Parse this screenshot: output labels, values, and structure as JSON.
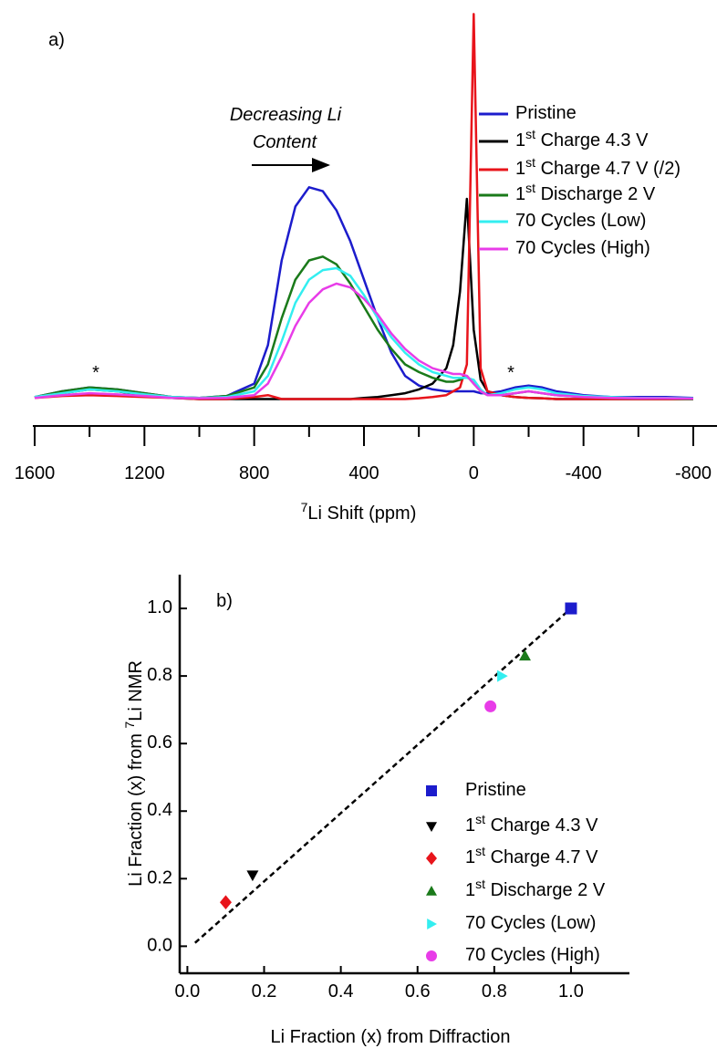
{
  "chart_data": [
    {
      "type": "line",
      "xlabel": "7Li Shift (ppm)",
      "xlim": [
        1600,
        -800
      ],
      "xticks": [
        1600,
        1200,
        800,
        400,
        0,
        -400,
        -800
      ],
      "xminorticks": [
        1400,
        1000,
        600,
        200,
        -200,
        -600
      ],
      "ylim": [
        -7,
        102
      ],
      "legend": "upper right",
      "annotations": [
        "a)",
        "Decreasing Li",
        "Content",
        "*",
        "*"
      ],
      "x": [
        1600,
        1500,
        1400,
        1300,
        1200,
        1100,
        1000,
        900,
        800,
        750,
        700,
        650,
        600,
        550,
        500,
        450,
        400,
        350,
        300,
        250,
        200,
        150,
        100,
        75,
        50,
        25,
        0,
        -25,
        -50,
        -100,
        -150,
        -200,
        -250,
        -300,
        -400,
        -500,
        -600,
        -700,
        -800
      ],
      "series": [
        {
          "name": "Pristine",
          "color": "#1c1ccc",
          "values": [
            0.5,
            2,
            3,
            2.5,
            1.5,
            0.5,
            0.3,
            0.8,
            4,
            14,
            36,
            50,
            55,
            54,
            49,
            41,
            31,
            21,
            12,
            6,
            3.5,
            2.5,
            2,
            2,
            2,
            2,
            2,
            1.5,
            1.5,
            2,
            3,
            3.5,
            3,
            2,
            1,
            0.5,
            0.5,
            0.5,
            0.3
          ]
        },
        {
          "name": "1st Charge 4.3 V",
          "color": "#000000",
          "values": [
            0.3,
            1.5,
            2.5,
            2,
            1,
            0.3,
            0,
            0,
            0,
            0,
            0,
            0,
            0,
            0,
            0,
            0,
            0.3,
            0.5,
            1,
            1.5,
            2.5,
            4,
            8,
            14,
            28,
            52,
            18,
            5,
            2,
            1,
            0.5,
            0.3,
            0.2,
            0,
            0,
            0,
            0,
            0,
            0
          ]
        },
        {
          "name": "1st Charge 4.7 V (/2)",
          "color": "#e8141b",
          "values": [
            0.3,
            0.8,
            1,
            0.8,
            0.5,
            0.3,
            0,
            0,
            0.5,
            1,
            0,
            0,
            0,
            0,
            0,
            0,
            0,
            0,
            0,
            0,
            0.2,
            0.5,
            1,
            2,
            3,
            9,
            100,
            8,
            2,
            1,
            0.5,
            0.3,
            0.2,
            0,
            0,
            0,
            0,
            0,
            0
          ]
        },
        {
          "name": "1st Discharge 2 V",
          "color": "#1a7a1a",
          "values": [
            0.5,
            2,
            3,
            2.5,
            1.5,
            0.5,
            0.3,
            0.8,
            3,
            9,
            21,
            31,
            36,
            37,
            35,
            30,
            24,
            18,
            13,
            9,
            7,
            5.5,
            4.5,
            4.5,
            5,
            6,
            4,
            2,
            1,
            1,
            1.5,
            2,
            1.5,
            1,
            0.5,
            0.3,
            0.2,
            0.2,
            0
          ]
        },
        {
          "name": "70 Cycles (Low)",
          "color": "#33eef0",
          "values": [
            0.5,
            1.5,
            2.5,
            2,
            1.2,
            0.5,
            0.3,
            0.5,
            2,
            6,
            15,
            25,
            31,
            33.5,
            34,
            32,
            27,
            21,
            16,
            12,
            9,
            7,
            6,
            5.5,
            5.5,
            5.5,
            5,
            2.5,
            1,
            1.5,
            2.5,
            3,
            2.5,
            1.5,
            0.8,
            0.5,
            0.3,
            0.3,
            0.2
          ]
        },
        {
          "name": "70 Cycles (High)",
          "color": "#e83ce8",
          "values": [
            0.3,
            1,
            1.5,
            1.2,
            0.8,
            0.3,
            0.2,
            0.3,
            1,
            4,
            11,
            19,
            25,
            28.5,
            30,
            29,
            26,
            22,
            17,
            13,
            10,
            8,
            7,
            6.5,
            6.5,
            6,
            4,
            2,
            1,
            1,
            1.5,
            2,
            1.5,
            1,
            0.5,
            0.3,
            0.2,
            0.2,
            0.1
          ]
        }
      ]
    },
    {
      "type": "scatter",
      "xlabel": "Li Fraction (x) from Diffraction",
      "ylabel": "Li Fraction (x) from 7Li NMR",
      "xlim": [
        -0.02,
        1.1
      ],
      "ylim": [
        -0.08,
        1.1
      ],
      "xticks": [
        {
          "value": 0,
          "label": "0.0"
        },
        0.2,
        0.4,
        0.6,
        0.8,
        {
          "value": 1,
          "label": "1.0"
        }
      ],
      "yticks": [
        {
          "value": 0,
          "label": "0.0"
        },
        0.2,
        0.4,
        0.6,
        0.8,
        {
          "value": 1,
          "label": "1.0"
        }
      ],
      "legend": "lower right",
      "annotations": [
        "b)"
      ],
      "series": [
        {
          "name": "Pristine",
          "color": "#1c1ccc",
          "marker": "square",
          "x": [
            1.0
          ],
          "values": [
            1.0
          ]
        },
        {
          "name": "1st Charge 4.3 V",
          "color": "#000000",
          "marker": "triangle-down",
          "x": [
            0.17
          ],
          "values": [
            0.21
          ]
        },
        {
          "name": "1st Charge 4.7 V",
          "color": "#e8141b",
          "marker": "diamond",
          "x": [
            0.1
          ],
          "values": [
            0.13
          ]
        },
        {
          "name": "1st Discharge 2 V",
          "color": "#1a7a1a",
          "marker": "triangle-up",
          "x": [
            0.88
          ],
          "values": [
            0.86
          ]
        },
        {
          "name": "70 Cycles (Low)",
          "color": "#33eef0",
          "marker": "triangle-right",
          "x": [
            0.82
          ],
          "values": [
            0.8
          ]
        },
        {
          "name": "70 Cycles (High)",
          "color": "#e83ce8",
          "marker": "circle",
          "x": [
            0.79
          ],
          "values": [
            0.71
          ]
        },
        {
          "type": "line",
          "color": "#000000",
          "dash": true,
          "x": [
            0.02,
            1.0
          ],
          "values": [
            0.01,
            1.0
          ]
        }
      ]
    }
  ]
}
